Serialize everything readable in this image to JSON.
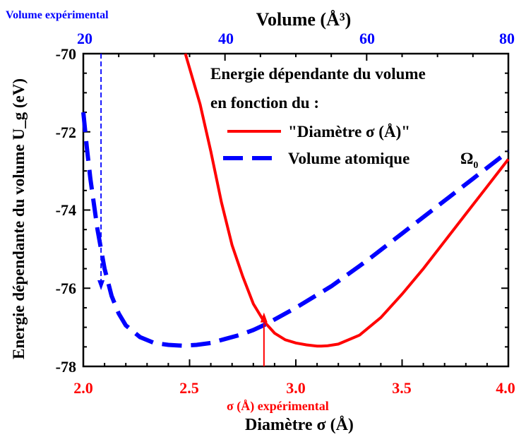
{
  "chart_data": {
    "type": "line",
    "title": "",
    "xlabel": "Diamètre σ (Å)",
    "xlabel_top": "Volume (Å³)",
    "ylabel": "Energie dépendante du volume U_g (eV)",
    "xlim": [
      2.0,
      4.0
    ],
    "xlim_top": [
      20,
      80
    ],
    "ylim": [
      -78,
      -70
    ],
    "x_ticks": [
      "2.0",
      "2.5",
      "3.0",
      "3.5",
      "4.0"
    ],
    "x_ticks_top": [
      "20",
      "40",
      "60",
      "80"
    ],
    "y_ticks": [
      "-70",
      "-72",
      "-74",
      "-76",
      "-78"
    ],
    "grid": false,
    "legend_placement": "top-right",
    "legend": {
      "title_line1": "Energie dépendante du volume",
      "title_line2": "en fonction du :",
      "entries": [
        "\"Diamètre σ (Å)\"",
        "Volume atomique"
      ],
      "omega_label": "Ω",
      "omega_sub": "0"
    },
    "annotations": {
      "top_left": "Volume expérimental",
      "bottom": "σ (Å) expérimental",
      "experimental_sigma": 2.85,
      "experimental_volume": 22.5
    },
    "series": [
      {
        "name": "\"Diamètre σ (Å)\"",
        "axis": "bottom",
        "color": "#ff0000",
        "style": "solid",
        "x": [
          2.48,
          2.55,
          2.6,
          2.65,
          2.7,
          2.75,
          2.8,
          2.85,
          2.9,
          2.95,
          3.0,
          3.05,
          3.1,
          3.12,
          3.15,
          3.2,
          3.3,
          3.4,
          3.5,
          3.6,
          3.7,
          3.8,
          3.9,
          4.0
        ],
        "y": [
          -69.5,
          -71.3,
          -72.5,
          -73.8,
          -74.9,
          -75.7,
          -76.4,
          -76.85,
          -77.15,
          -77.32,
          -77.4,
          -77.45,
          -77.48,
          -77.48,
          -77.47,
          -77.43,
          -77.2,
          -76.75,
          -76.15,
          -75.5,
          -74.8,
          -74.1,
          -73.4,
          -72.7
        ]
      },
      {
        "name": "Volume atomique",
        "axis": "top",
        "color": "#0000ff",
        "style": "dashed",
        "x": [
          20,
          20.5,
          21,
          22,
          23,
          24,
          25,
          26,
          28,
          30,
          32,
          34,
          36,
          38,
          40,
          42,
          44,
          46,
          50,
          55,
          60,
          65,
          70,
          75,
          80
        ],
        "y": [
          -71.5,
          -72.4,
          -73.2,
          -74.5,
          -75.5,
          -76.2,
          -76.65,
          -76.95,
          -77.25,
          -77.4,
          -77.45,
          -77.47,
          -77.45,
          -77.4,
          -77.3,
          -77.2,
          -77.07,
          -76.9,
          -76.5,
          -75.95,
          -75.3,
          -74.6,
          -73.9,
          -73.2,
          -72.5
        ]
      }
    ]
  },
  "colors": {
    "red": "#ff0000",
    "blue": "#0000ff",
    "axis": "#000000"
  }
}
